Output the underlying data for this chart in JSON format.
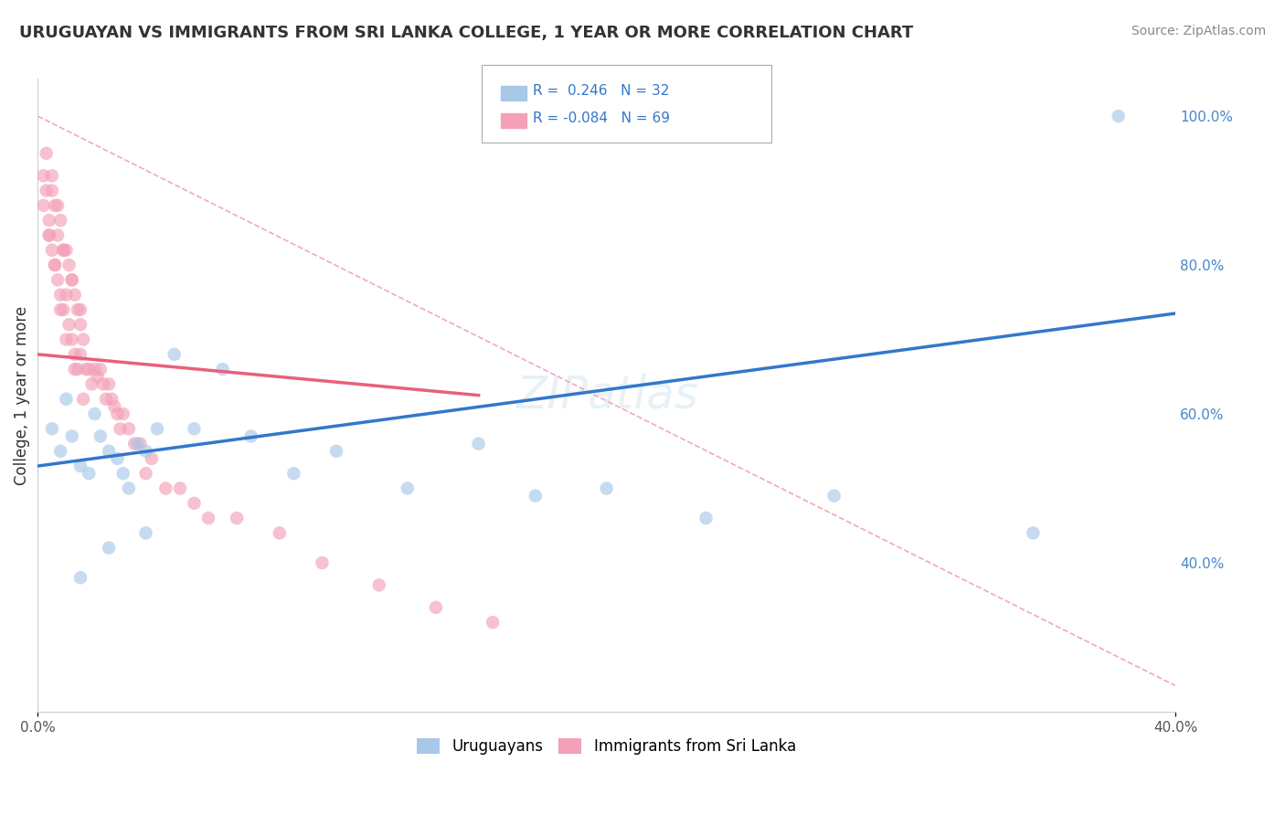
{
  "title": "URUGUAYAN VS IMMIGRANTS FROM SRI LANKA COLLEGE, 1 YEAR OR MORE CORRELATION CHART",
  "source": "Source: ZipAtlas.com",
  "ylabel": "College, 1 year or more",
  "xlim": [
    0.0,
    0.4
  ],
  "ylim": [
    0.2,
    1.05
  ],
  "yticks_right": [
    0.4,
    0.6,
    0.8,
    1.0
  ],
  "ytick_labels_right": [
    "40.0%",
    "60.0%",
    "80.0%",
    "100.0%"
  ],
  "blue_color": "#a8c8e8",
  "pink_color": "#f4a0b8",
  "blue_line_color": "#3377cc",
  "pink_line_color": "#e8607a",
  "ref_line_color": "#f0a0b8",
  "background_color": "#ffffff",
  "grid_color": "#cccccc",
  "title_color": "#333333",
  "source_color": "#888888",
  "blue_line_x0": 0.0,
  "blue_line_y0": 0.53,
  "blue_line_x1": 0.4,
  "blue_line_y1": 0.735,
  "pink_line_x0": 0.0,
  "pink_line_y0": 0.68,
  "pink_line_x1": 0.155,
  "pink_line_y1": 0.625,
  "ref_line_x0": 0.0,
  "ref_line_y0": 1.0,
  "ref_line_x1": 0.4,
  "ref_line_y1": 0.235,
  "uruguayans_x": [
    0.005,
    0.008,
    0.01,
    0.012,
    0.015,
    0.018,
    0.02,
    0.022,
    0.025,
    0.028,
    0.03,
    0.032,
    0.035,
    0.038,
    0.042,
    0.048,
    0.055,
    0.065,
    0.075,
    0.09,
    0.105,
    0.13,
    0.155,
    0.175,
    0.2,
    0.235,
    0.28,
    0.35,
    0.38,
    0.015,
    0.025,
    0.038
  ],
  "uruguayans_y": [
    0.58,
    0.55,
    0.62,
    0.57,
    0.53,
    0.52,
    0.6,
    0.57,
    0.55,
    0.54,
    0.52,
    0.5,
    0.56,
    0.55,
    0.58,
    0.68,
    0.58,
    0.66,
    0.57,
    0.52,
    0.55,
    0.5,
    0.56,
    0.49,
    0.5,
    0.46,
    0.49,
    0.44,
    1.0,
    0.38,
    0.42,
    0.44
  ],
  "srilanka_x": [
    0.002,
    0.003,
    0.004,
    0.004,
    0.005,
    0.005,
    0.006,
    0.006,
    0.007,
    0.007,
    0.008,
    0.008,
    0.009,
    0.009,
    0.01,
    0.01,
    0.011,
    0.011,
    0.012,
    0.012,
    0.013,
    0.013,
    0.014,
    0.014,
    0.015,
    0.015,
    0.016,
    0.017,
    0.018,
    0.019,
    0.02,
    0.021,
    0.022,
    0.023,
    0.024,
    0.025,
    0.026,
    0.027,
    0.028,
    0.029,
    0.03,
    0.032,
    0.034,
    0.036,
    0.038,
    0.04,
    0.045,
    0.05,
    0.055,
    0.06,
    0.07,
    0.085,
    0.1,
    0.12,
    0.14,
    0.16,
    0.003,
    0.005,
    0.007,
    0.009,
    0.012,
    0.015,
    0.002,
    0.004,
    0.006,
    0.008,
    0.01,
    0.013,
    0.016
  ],
  "srilanka_y": [
    0.88,
    0.9,
    0.86,
    0.84,
    0.9,
    0.82,
    0.88,
    0.8,
    0.84,
    0.78,
    0.86,
    0.76,
    0.82,
    0.74,
    0.82,
    0.76,
    0.8,
    0.72,
    0.78,
    0.7,
    0.76,
    0.68,
    0.74,
    0.66,
    0.72,
    0.68,
    0.7,
    0.66,
    0.66,
    0.64,
    0.66,
    0.65,
    0.66,
    0.64,
    0.62,
    0.64,
    0.62,
    0.61,
    0.6,
    0.58,
    0.6,
    0.58,
    0.56,
    0.56,
    0.52,
    0.54,
    0.5,
    0.5,
    0.48,
    0.46,
    0.46,
    0.44,
    0.4,
    0.37,
    0.34,
    0.32,
    0.95,
    0.92,
    0.88,
    0.82,
    0.78,
    0.74,
    0.92,
    0.84,
    0.8,
    0.74,
    0.7,
    0.66,
    0.62
  ]
}
